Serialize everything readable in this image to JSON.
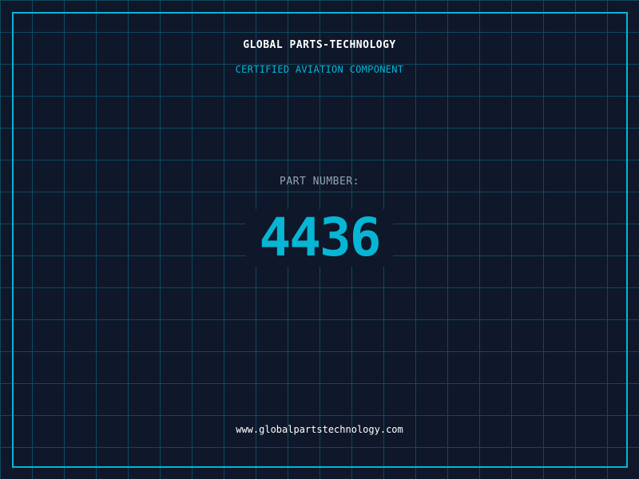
{
  "header": {
    "title": "GLOBAL PARTS-TECHNOLOGY",
    "subtitle": "CERTIFIED AVIATION COMPONENT"
  },
  "part": {
    "label": "PART NUMBER:",
    "number": "4436"
  },
  "footer": {
    "url": "www.globalpartstechnology.com"
  },
  "colors": {
    "background": "#0f172a",
    "accent": "#06b6d4",
    "grid": "#0e4a5e",
    "label": "#94a3b8"
  }
}
